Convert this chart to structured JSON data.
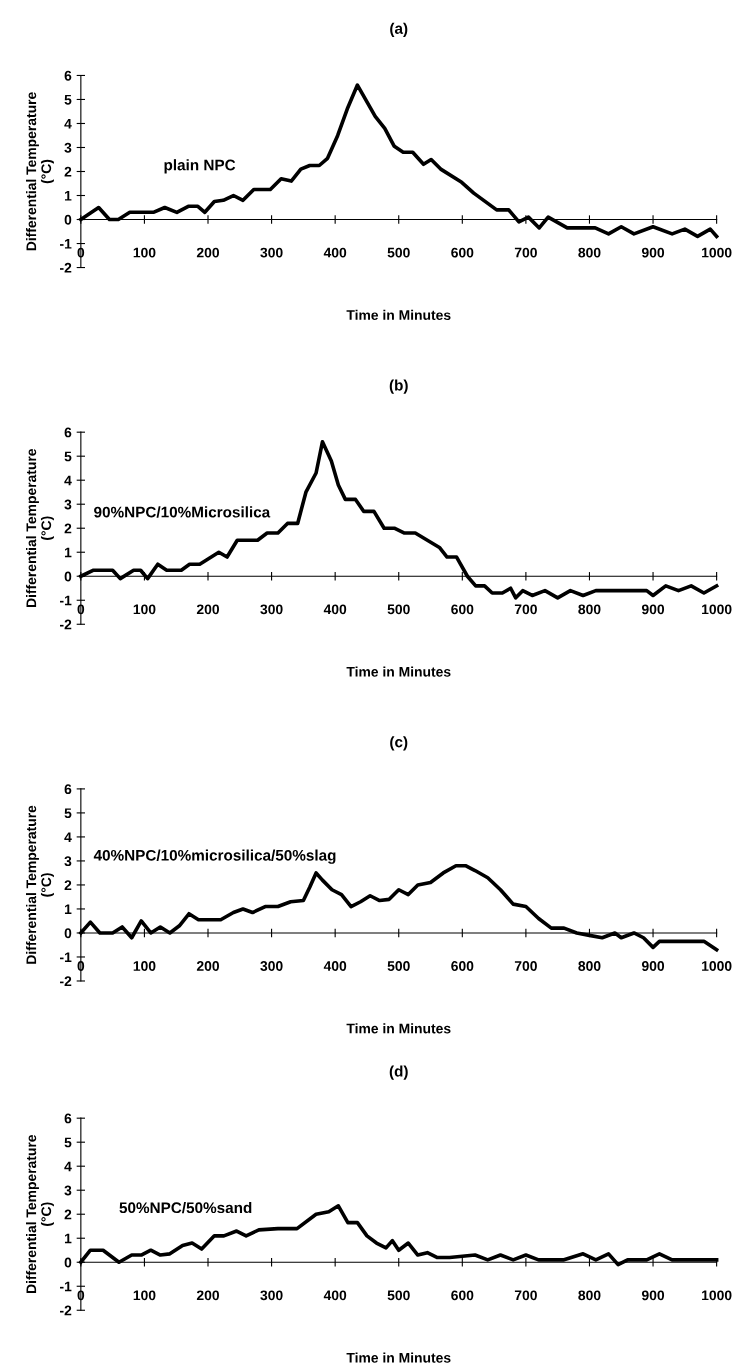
{
  "chart_data": [
    {
      "type": "line",
      "title": "(a)",
      "xlabel": "Time in Minutes",
      "ylabel": "Differential Temperature\n(°C)",
      "xlim": [
        0,
        1000
      ],
      "ylim": [
        -2,
        6
      ],
      "xticks": [
        0,
        100,
        200,
        300,
        400,
        500,
        600,
        700,
        800,
        900,
        1000
      ],
      "yticks": [
        -2,
        -1,
        0,
        1,
        2,
        3,
        4,
        5,
        6
      ],
      "grid": false,
      "legend": false,
      "marker": "none",
      "line_style": "solid",
      "series": [
        {
          "name": "plain NPC",
          "color": "#000000",
          "x": [
            0,
            28,
            45,
            59,
            77,
            96,
            114,
            132,
            151,
            169,
            184,
            195,
            210,
            224,
            240,
            255,
            272,
            298,
            315,
            331,
            346,
            360,
            375,
            388,
            404,
            419,
            435,
            463,
            478,
            493,
            507,
            522,
            539,
            551,
            566,
            599,
            618,
            654,
            673,
            689,
            704,
            721,
            735,
            765,
            809,
            830,
            850,
            870,
            900,
            930,
            950,
            970,
            990,
            1000
          ],
          "values": [
            0,
            0.5,
            0,
            0,
            0.3,
            0.3,
            0.3,
            0.5,
            0.3,
            0.55,
            0.55,
            0.3,
            0.75,
            0.8,
            1.0,
            0.8,
            1.25,
            1.25,
            1.7,
            1.6,
            2.1,
            2.25,
            2.25,
            2.55,
            3.5,
            4.6,
            5.6,
            4.3,
            3.8,
            3.05,
            2.8,
            2.8,
            2.3,
            2.5,
            2.1,
            1.55,
            1.1,
            0.4,
            0.4,
            -0.1,
            0.1,
            -0.35,
            0.1,
            -0.35,
            -0.35,
            -0.6,
            -0.3,
            -0.6,
            -0.3,
            -0.6,
            -0.4,
            -0.7,
            -0.4,
            -0.7
          ]
        }
      ]
    },
    {
      "type": "line",
      "title": "(b)",
      "xlabel": "Time in Minutes",
      "ylabel": "Differential Temperature\n(°C)",
      "xlim": [
        0,
        1000
      ],
      "ylim": [
        -2,
        6
      ],
      "xticks": [
        0,
        100,
        200,
        300,
        400,
        500,
        600,
        700,
        800,
        900,
        1000
      ],
      "yticks": [
        -2,
        -1,
        0,
        1,
        2,
        3,
        4,
        5,
        6
      ],
      "grid": false,
      "legend": false,
      "marker": "none",
      "line_style": "solid",
      "series": [
        {
          "name": "90%NPC/10%Microsilica",
          "color": "#000000",
          "x": [
            0,
            20,
            50,
            62,
            83,
            94,
            105,
            121,
            135,
            158,
            171,
            187,
            217,
            230,
            246,
            262,
            278,
            293,
            310,
            325,
            341,
            354,
            370,
            380,
            394,
            405,
            416,
            432,
            445,
            461,
            477,
            493,
            509,
            526,
            545,
            564,
            576,
            591,
            608,
            621,
            635,
            647,
            663,
            676,
            684,
            695,
            710,
            730,
            750,
            770,
            790,
            810,
            830,
            860,
            890,
            900,
            920,
            940,
            960,
            980,
            1000
          ],
          "values": [
            0,
            0.25,
            0.25,
            -0.1,
            0.25,
            0.25,
            -0.1,
            0.5,
            0.25,
            0.25,
            0.5,
            0.5,
            1.0,
            0.8,
            1.5,
            1.5,
            1.5,
            1.8,
            1.8,
            2.2,
            2.2,
            3.5,
            4.3,
            5.6,
            4.8,
            3.8,
            3.2,
            3.2,
            2.7,
            2.7,
            2.0,
            2.0,
            1.8,
            1.8,
            1.5,
            1.2,
            0.8,
            0.8,
            0.0,
            -0.4,
            -0.4,
            -0.7,
            -0.7,
            -0.5,
            -0.9,
            -0.6,
            -0.8,
            -0.6,
            -0.9,
            -0.6,
            -0.8,
            -0.6,
            -0.6,
            -0.6,
            -0.6,
            -0.8,
            -0.4,
            -0.6,
            -0.4,
            -0.7,
            -0.4
          ]
        }
      ]
    },
    {
      "type": "line",
      "title": "(c)",
      "xlabel": "Time in Minutes",
      "ylabel": "Differential Temperature\n(°C)",
      "xlim": [
        0,
        1000
      ],
      "ylim": [
        -2,
        6
      ],
      "xticks": [
        0,
        100,
        200,
        300,
        400,
        500,
        600,
        700,
        800,
        900,
        1000
      ],
      "yticks": [
        -2,
        -1,
        0,
        1,
        2,
        3,
        4,
        5,
        6
      ],
      "grid": false,
      "legend": false,
      "marker": "none",
      "line_style": "solid",
      "series": [
        {
          "name": "40%NPC/10%microsilica/50%slag",
          "color": "#000000",
          "x": [
            0,
            15,
            30,
            50,
            65,
            80,
            95,
            110,
            125,
            140,
            155,
            170,
            185,
            200,
            220,
            240,
            255,
            270,
            290,
            310,
            330,
            350,
            360,
            370,
            380,
            395,
            410,
            425,
            440,
            455,
            470,
            485,
            500,
            515,
            530,
            550,
            570,
            590,
            605,
            620,
            640,
            660,
            680,
            700,
            720,
            740,
            760,
            780,
            800,
            820,
            840,
            850,
            870,
            885,
            900,
            910,
            940,
            980,
            1000
          ],
          "values": [
            0,
            0.45,
            0,
            0,
            0.25,
            -0.2,
            0.5,
            0,
            0.25,
            0,
            0.3,
            0.8,
            0.55,
            0.55,
            0.55,
            0.85,
            1.0,
            0.85,
            1.1,
            1.1,
            1.3,
            1.35,
            1.9,
            2.5,
            2.2,
            1.8,
            1.6,
            1.1,
            1.3,
            1.55,
            1.35,
            1.4,
            1.8,
            1.6,
            2.0,
            2.1,
            2.5,
            2.8,
            2.8,
            2.6,
            2.3,
            1.8,
            1.2,
            1.1,
            0.6,
            0.2,
            0.2,
            0,
            -0.1,
            -0.2,
            0,
            -0.2,
            0,
            -0.2,
            -0.6,
            -0.35,
            -0.35,
            -0.35,
            -0.7
          ]
        }
      ]
    },
    {
      "type": "line",
      "title": "(d)",
      "xlabel": "Time in Minutes",
      "ylabel": "Differential Temperature\n(°C)",
      "xlim": [
        0,
        1000
      ],
      "ylim": [
        -2,
        6
      ],
      "xticks": [
        0,
        100,
        200,
        300,
        400,
        500,
        600,
        700,
        800,
        900,
        1000
      ],
      "yticks": [
        -2,
        -1,
        0,
        1,
        2,
        3,
        4,
        5,
        6
      ],
      "grid": false,
      "legend": false,
      "marker": "none",
      "line_style": "solid",
      "series": [
        {
          "name": "50%NPC/50%sand",
          "color": "#000000",
          "x": [
            0,
            15,
            35,
            60,
            80,
            95,
            110,
            125,
            140,
            160,
            175,
            190,
            210,
            225,
            245,
            260,
            280,
            310,
            340,
            370,
            390,
            405,
            420,
            435,
            450,
            465,
            480,
            490,
            500,
            515,
            530,
            545,
            560,
            580,
            600,
            620,
            640,
            660,
            680,
            700,
            720,
            760,
            790,
            810,
            830,
            845,
            860,
            890,
            910,
            930,
            1000
          ],
          "values": [
            0,
            0.5,
            0.5,
            0,
            0.3,
            0.3,
            0.5,
            0.3,
            0.35,
            0.7,
            0.8,
            0.55,
            1.1,
            1.1,
            1.3,
            1.1,
            1.35,
            1.4,
            1.4,
            2.0,
            2.1,
            2.35,
            1.65,
            1.65,
            1.1,
            0.8,
            0.6,
            0.9,
            0.5,
            0.8,
            0.3,
            0.4,
            0.2,
            0.2,
            0.25,
            0.3,
            0.1,
            0.3,
            0.1,
            0.3,
            0.1,
            0.1,
            0.35,
            0.1,
            0.35,
            -0.1,
            0.1,
            0.1,
            0.35,
            0.1,
            0.1
          ]
        }
      ]
    }
  ]
}
